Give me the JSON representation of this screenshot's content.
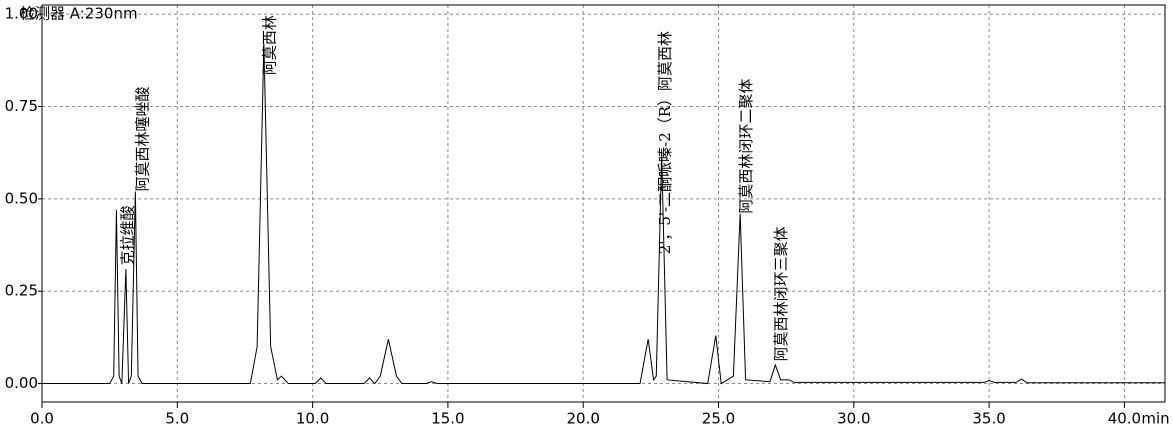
{
  "chart_data": {
    "type": "line",
    "detector": "检测器 A:230nm",
    "xlabel": "min",
    "color": "#000000",
    "grid": true,
    "x": [
      0,
      1.7,
      2.5,
      2.65,
      2.75,
      2.85,
      2.95,
      3.1,
      3.2,
      3.3,
      3.45,
      3.55,
      3.7,
      7.7,
      7.95,
      8.2,
      8.45,
      8.7,
      8.85,
      9.1,
      10.1,
      10.3,
      10.5,
      11.9,
      12.1,
      12.3,
      12.5,
      12.8,
      13.1,
      13.3,
      14.2,
      14.4,
      14.6,
      22.1,
      22.4,
      22.6,
      22.7,
      22.9,
      23.1,
      24.6,
      24.9,
      25.1,
      25.55,
      25.8,
      26.0,
      26.9,
      27.1,
      27.3,
      27.6,
      27.8,
      34.8,
      35.0,
      35.2,
      36.0,
      36.2,
      36.4,
      41.5
    ],
    "values": [
      0,
      0,
      0,
      0.02,
      0.47,
      0.02,
      0,
      0.31,
      0,
      0.02,
      0.52,
      0.02,
      0,
      0,
      0.1,
      0.92,
      0.1,
      0.01,
      0.02,
      0,
      0,
      0.015,
      0,
      0,
      0.015,
      0,
      0.02,
      0.12,
      0.02,
      0,
      0,
      0.005,
      0,
      0,
      0.12,
      0.01,
      0.02,
      0.62,
      0.01,
      0,
      0.13,
      0,
      0.02,
      0.46,
      0.01,
      0.005,
      0.05,
      0.01,
      0.01,
      0.003,
      0.003,
      0.008,
      0.003,
      0.003,
      0.012,
      0.002,
      0.002
    ],
    "xlim": [
      0,
      41.5
    ],
    "ylim": [
      -0.05,
      1.025
    ],
    "xticks": [
      {
        "value": 0,
        "label": "0.0"
      },
      {
        "value": 5,
        "label": "5.0"
      },
      {
        "value": 10,
        "label": "10.0"
      },
      {
        "value": 15,
        "label": "15.0"
      },
      {
        "value": 20,
        "label": "20.0"
      },
      {
        "value": 25,
        "label": "25.0"
      },
      {
        "value": 30,
        "label": "30.0"
      },
      {
        "value": 35,
        "label": "35.0"
      },
      {
        "value": 40,
        "label": "40.0"
      }
    ],
    "yticks": [
      {
        "value": 0,
        "label": "0.00"
      },
      {
        "value": 0.25,
        "label": "0.25"
      },
      {
        "value": 0.5,
        "label": "0.50"
      },
      {
        "value": 0.75,
        "label": "0.75"
      },
      {
        "value": 1,
        "label": "1.00"
      }
    ],
    "annotations": [
      {
        "text": "克拉维酸",
        "x": 3.35,
        "y": 0.32
      },
      {
        "text": "阿莫西林噻唑酸",
        "x": 3.9,
        "y": 0.52
      },
      {
        "text": "阿莫西林",
        "x": 8.6,
        "y": 0.835
      },
      {
        "text": "2'，5'-二酮哌嗪-2（R）阿莫西林",
        "x": 23.2,
        "y": 0.35
      },
      {
        "text": "阿莫西林闭环二聚体",
        "x": 26.2,
        "y": 0.46
      },
      {
        "text": "阿莫西林闭环三聚体",
        "x": 27.5,
        "y": 0.06
      }
    ]
  }
}
